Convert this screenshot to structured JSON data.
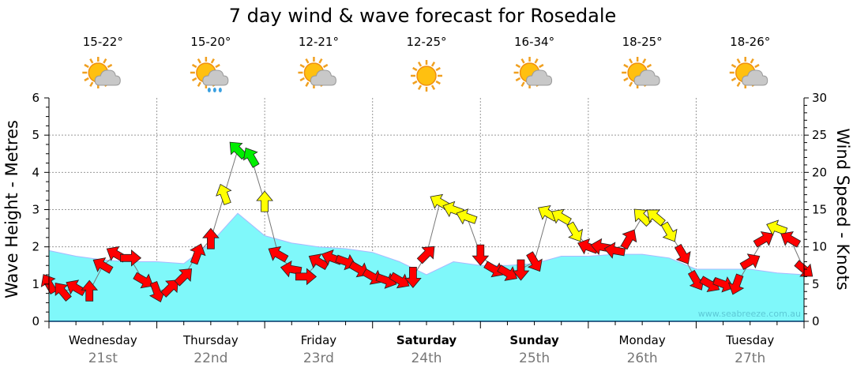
{
  "chart_data": {
    "type": "area",
    "title": "7 day wind & wave forecast for Rosedale",
    "ylabel_left": "Wave Height - Metres",
    "ylabel_right": "Wind Speed - Knots",
    "ylim_left": [
      0,
      6
    ],
    "ylim_right": [
      0,
      30
    ],
    "yticks_left": [
      "0",
      "1",
      "2",
      "3",
      "4",
      "5",
      "6"
    ],
    "yticks_right": [
      "0",
      "5",
      "10",
      "15",
      "20",
      "25",
      "30"
    ],
    "grid": true,
    "watermark": "www.seabreeze.com.au",
    "days": [
      {
        "name": "Wednesday",
        "date": "21st",
        "bold": false,
        "temp": "15-22°",
        "icon": "partly-cloudy-icon"
      },
      {
        "name": "Thursday",
        "date": "22nd",
        "bold": false,
        "temp": "15-20°",
        "icon": "rain-icon"
      },
      {
        "name": "Friday",
        "date": "23rd",
        "bold": false,
        "temp": "12-21°",
        "icon": "partly-cloudy-icon"
      },
      {
        "name": "Saturday",
        "date": "24th",
        "bold": true,
        "temp": "12-25°",
        "icon": "sunny-icon"
      },
      {
        "name": "Sunday",
        "date": "25th",
        "bold": true,
        "temp": "16-34°",
        "icon": "partly-cloudy-icon"
      },
      {
        "name": "Monday",
        "date": "26th",
        "bold": false,
        "temp": "18-25°",
        "icon": "partly-cloudy-icon"
      },
      {
        "name": "Tuesday",
        "date": "27th",
        "bold": false,
        "temp": "18-26°",
        "icon": "partly-cloudy-icon"
      }
    ],
    "wave_series": {
      "name": "Wave Height (m)",
      "interval_hours": 6,
      "values": [
        1.9,
        1.75,
        1.65,
        1.6,
        1.6,
        1.55,
        2.1,
        2.9,
        2.3,
        2.1,
        2.0,
        1.95,
        1.85,
        1.6,
        1.25,
        1.6,
        1.5,
        1.5,
        1.55,
        1.75,
        1.75,
        1.8,
        1.8,
        1.7,
        1.4,
        1.4,
        1.4,
        1.3,
        1.25
      ],
      "color": "#7ff8fa"
    },
    "wind_series": {
      "name": "Wind Speed (knots)",
      "interval_hours": 3,
      "speeds": [
        5,
        4,
        4.5,
        4,
        7.5,
        9,
        8.5,
        5.5,
        4,
        4.5,
        6,
        9,
        11,
        17,
        23,
        22,
        16,
        9,
        7,
        6,
        8,
        8.5,
        8,
        7,
        6,
        5.5,
        5.5,
        6,
        9,
        16,
        15,
        14,
        9,
        7,
        6.5,
        7,
        8,
        14.5,
        14,
        12,
        10,
        10,
        9.5,
        11,
        14,
        14,
        12,
        9,
        5.5,
        5,
        5,
        5,
        8,
        11,
        12.5,
        11,
        7
      ],
      "arrow_directions_deg": [
        -30,
        -40,
        -60,
        0,
        -60,
        -60,
        90,
        120,
        160,
        45,
        45,
        20,
        0,
        -20,
        -45,
        -30,
        0,
        -60,
        -80,
        90,
        -60,
        -70,
        110,
        120,
        120,
        110,
        120,
        180,
        45,
        -60,
        -70,
        -70,
        180,
        120,
        120,
        180,
        150,
        -60,
        -60,
        150,
        -70,
        -80,
        -80,
        30,
        -45,
        -50,
        150,
        150,
        150,
        120,
        110,
        200,
        60,
        60,
        -70,
        -60,
        130
      ],
      "color_thresholds": {
        "red_below": 12,
        "green_from": 20
      },
      "colors": {
        "low": "#ff0000",
        "mid": "#ffff00",
        "high": "#00ee00"
      }
    }
  }
}
